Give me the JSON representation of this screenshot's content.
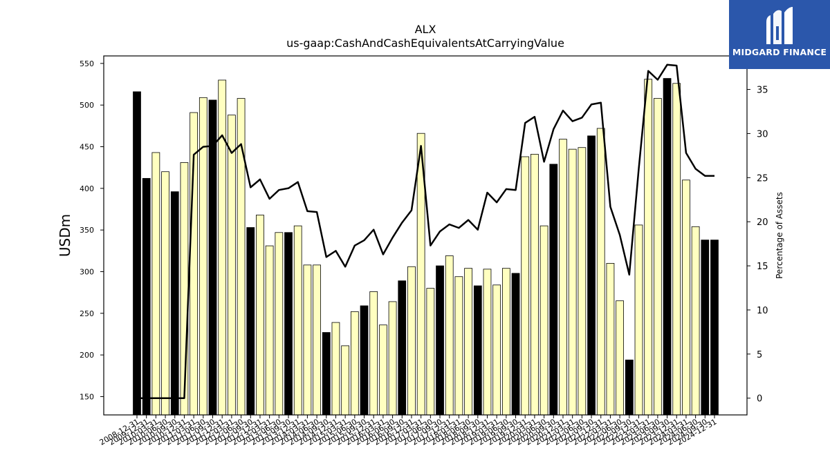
{
  "logo": {
    "text": "MIDGARD FINANCE",
    "icon": "midgard-m-logo-icon",
    "background": "#2b57ab"
  },
  "chart_data": {
    "type": "bar",
    "title": "ALX",
    "subtitle": "us-gaap:CashAndCashEquivalentsAtCarryingValue",
    "ylabel": "USDm",
    "y2label": "Percentage of Assets",
    "ylim": [
      128,
      559
    ],
    "y2lim": [
      -1.9,
      38.8
    ],
    "yticks": [
      150,
      200,
      250,
      300,
      350,
      400,
      450,
      500,
      550
    ],
    "y2ticks": [
      0,
      5,
      10,
      15,
      20,
      25,
      30,
      35
    ],
    "grid": false,
    "colors": {
      "annual_bar": "#000000",
      "quarter_bar": "#ffffc0",
      "bar_edge": "#000000",
      "line": "#000000"
    },
    "categories": [
      "2008-12-31",
      "2009-12-31",
      "2010-03-31",
      "2010-06-30",
      "2010-09-30",
      "2010-12-31",
      "2011-03-31",
      "2011-06-30",
      "2011-09-30",
      "2011-12-31",
      "2012-03-31",
      "2012-06-30",
      "2012-09-30",
      "2012-12-31",
      "2013-03-31",
      "2013-06-30",
      "2013-09-30",
      "2013-12-31",
      "2014-03-31",
      "2014-06-30",
      "2014-09-30",
      "2014-12-31",
      "2015-03-31",
      "2015-06-30",
      "2015-09-30",
      "2015-12-31",
      "2016-03-31",
      "2016-06-30",
      "2016-09-30",
      "2016-12-31",
      "2017-03-31",
      "2017-06-30",
      "2017-09-30",
      "2017-12-31",
      "2018-03-31",
      "2018-06-30",
      "2018-09-30",
      "2018-12-31",
      "2019-03-31",
      "2019-06-30",
      "2019-09-30",
      "2019-12-31",
      "2020-03-31",
      "2020-06-30",
      "2020-09-30",
      "2020-12-31",
      "2021-03-31",
      "2021-06-30",
      "2021-09-30",
      "2021-12-31",
      "2022-03-31",
      "2022-06-30",
      "2022-09-30",
      "2022-12-31",
      "2023-03-31",
      "2023-06-30",
      "2023-09-30",
      "2023-12-31",
      "2024-03-31",
      "2024-06-30",
      "2024-09-30",
      "2024-12-31"
    ],
    "annual": [
      true,
      true,
      false,
      false,
      true,
      false,
      false,
      false,
      true,
      false,
      false,
      false,
      true,
      false,
      false,
      false,
      true,
      false,
      false,
      false,
      true,
      false,
      false,
      false,
      true,
      false,
      false,
      false,
      true,
      false,
      false,
      false,
      true,
      false,
      false,
      false,
      true,
      false,
      false,
      false,
      true,
      false,
      false,
      false,
      true,
      false,
      false,
      false,
      true,
      false,
      false,
      false,
      true,
      false,
      false,
      false,
      true,
      false,
      false,
      false,
      true,
      true
    ],
    "series": [
      {
        "name": "USDm",
        "values": [
          516,
          412,
          443,
          420,
          396,
          431,
          491,
          509,
          506,
          530,
          488,
          508,
          353,
          368,
          331,
          347,
          347,
          355,
          308,
          308,
          227,
          239,
          211,
          252,
          259,
          276,
          236,
          264,
          289,
          306,
          466,
          280,
          307,
          319,
          294,
          304,
          283,
          303,
          284,
          304,
          298,
          438,
          441,
          355,
          429,
          459,
          447,
          449,
          463,
          472,
          310,
          265,
          194,
          356,
          531,
          508,
          532,
          526,
          410,
          354,
          338,
          338
        ]
      },
      {
        "name": "Percentage of Assets",
        "values": [
          0,
          0,
          0,
          0,
          0,
          0,
          27.6,
          28.5,
          28.6,
          29.8,
          27.8,
          28.8,
          23.9,
          24.8,
          22.6,
          23.6,
          23.8,
          24.5,
          21.2,
          21.1,
          16.0,
          16.7,
          14.9,
          17.3,
          17.9,
          19.1,
          16.3,
          18.2,
          19.9,
          21.3,
          28.6,
          17.3,
          18.9,
          19.7,
          19.3,
          20.2,
          19.1,
          23.3,
          22.2,
          23.7,
          23.6,
          31.2,
          31.9,
          26.8,
          30.5,
          32.6,
          31.4,
          31.8,
          33.3,
          33.5,
          21.7,
          18.5,
          14.0,
          26.0,
          37.1,
          36.1,
          37.8,
          37.7,
          27.8,
          26.0,
          25.2,
          25.2
        ]
      }
    ]
  }
}
